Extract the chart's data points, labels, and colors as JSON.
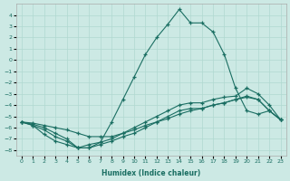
{
  "xlabel": "Humidex (Indice chaleur)",
  "bg_color": "#cce9e4",
  "grid_color": "#b0d8d0",
  "line_color": "#1a6e62",
  "xlim": [
    -0.5,
    23.5
  ],
  "ylim": [
    -8.5,
    5.0
  ],
  "xticks": [
    0,
    1,
    2,
    3,
    4,
    5,
    6,
    7,
    8,
    9,
    10,
    11,
    12,
    13,
    14,
    15,
    16,
    17,
    18,
    19,
    20,
    21,
    22,
    23
  ],
  "yticks": [
    -8,
    -7,
    -6,
    -5,
    -4,
    -3,
    -2,
    -1,
    0,
    1,
    2,
    3,
    4
  ],
  "curve1_x": [
    0,
    1,
    2,
    3,
    4,
    5,
    6,
    7,
    8,
    9,
    10,
    11,
    12,
    13,
    14,
    15,
    16,
    17,
    18,
    19,
    20,
    21,
    22,
    23
  ],
  "curve1_y": [
    -5.5,
    -5.8,
    -6.2,
    -6.8,
    -7.2,
    -7.8,
    -7.8,
    -7.3,
    -5.5,
    -3.5,
    -1.5,
    0.5,
    2.0,
    3.2,
    4.5,
    3.3,
    3.3,
    2.5,
    0.5,
    -2.5,
    -4.5,
    -4.8,
    -4.5,
    -5.3
  ],
  "curve2_x": [
    0,
    1,
    2,
    3,
    4,
    5,
    6,
    7,
    8,
    9,
    10,
    11,
    12,
    13,
    14,
    15,
    16,
    17,
    18,
    19,
    20,
    21,
    22,
    23
  ],
  "curve2_y": [
    -5.5,
    -5.8,
    -6.6,
    -7.2,
    -7.5,
    -7.8,
    -7.8,
    -7.5,
    -7.2,
    -6.8,
    -6.5,
    -6.0,
    -5.5,
    -5.0,
    -4.5,
    -4.3,
    -4.3,
    -4.0,
    -3.8,
    -3.5,
    -3.2,
    -3.5,
    -4.5,
    -5.3
  ],
  "curve3_x": [
    0,
    1,
    2,
    3,
    4,
    5,
    6,
    7,
    8,
    9,
    10,
    11,
    12,
    13,
    14,
    15,
    16,
    17,
    18,
    19,
    20,
    21,
    22,
    23
  ],
  "curve3_y": [
    -5.5,
    -5.7,
    -6.0,
    -6.5,
    -7.0,
    -7.8,
    -7.5,
    -7.3,
    -7.0,
    -6.5,
    -6.0,
    -5.5,
    -5.0,
    -4.5,
    -4.0,
    -3.8,
    -3.8,
    -3.5,
    -3.3,
    -3.2,
    -2.5,
    -3.0,
    -4.0,
    -5.3
  ],
  "curve4_x": [
    0,
    1,
    2,
    3,
    4,
    5,
    6,
    7,
    8,
    9,
    10,
    11,
    12,
    13,
    14,
    15,
    16,
    17,
    18,
    19,
    20,
    21,
    22,
    23
  ],
  "curve4_y": [
    -5.5,
    -5.6,
    -5.8,
    -6.0,
    -6.2,
    -6.5,
    -6.8,
    -6.8,
    -6.8,
    -6.5,
    -6.2,
    -5.8,
    -5.5,
    -5.2,
    -4.8,
    -4.5,
    -4.3,
    -4.0,
    -3.8,
    -3.5,
    -3.3,
    -3.5,
    -4.5,
    -5.3
  ]
}
